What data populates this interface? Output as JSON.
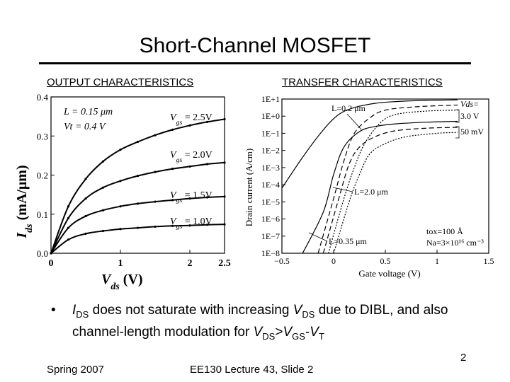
{
  "slide": {
    "title": "Short-Channel MOSFET",
    "left_subtitle": "OUTPUT CHARACTERISTICS",
    "right_subtitle": "TRANSFER CHARACTERISTICS",
    "footer_left": "Spring 2007",
    "footer_center": "EE130 Lecture 43, Slide 2",
    "page_number": "2"
  },
  "bullet": {
    "symbol": "•",
    "parts": [
      "I",
      "DS",
      " does not saturate with increasing ",
      "V",
      "DS",
      " due to DIBL, and also channel-length modulation for ",
      "V",
      "DS",
      ">",
      "V",
      "GS",
      "-",
      "V",
      "T"
    ]
  },
  "chart_data": [
    {
      "type": "line",
      "xlabel_main": "V",
      "xlabel_sub": "ds",
      "xlabel_unit": " (V)",
      "ylabel_main": "I",
      "ylabel_sub": "ds",
      "ylabel_unit": " (mA/μm)",
      "xlim": [
        0,
        2.5
      ],
      "ylim": [
        0,
        0.4
      ],
      "x_ticks": [
        "0",
        "1",
        "2",
        "2.5"
      ],
      "x_tick_values": [
        0,
        1,
        2,
        2.5
      ],
      "y_ticks": [
        "0.0",
        "0.1",
        "0.2",
        "0.3",
        "0.4"
      ],
      "y_tick_values": [
        0,
        0.1,
        0.2,
        0.3,
        0.4
      ],
      "annotations": [
        "L = 0.15 μm",
        "Vt = 0.4 V"
      ],
      "series": [
        {
          "name": "Vgs = 2.5V",
          "x": [
            0,
            0.25,
            0.5,
            0.75,
            1.0,
            1.25,
            1.5,
            1.75,
            2.0,
            2.25,
            2.5
          ],
          "y": [
            0,
            0.12,
            0.19,
            0.235,
            0.265,
            0.285,
            0.302,
            0.316,
            0.327,
            0.336,
            0.343
          ]
        },
        {
          "name": "Vgs = 2.0V",
          "x": [
            0,
            0.25,
            0.5,
            0.75,
            1.0,
            1.25,
            1.5,
            1.75,
            2.0,
            2.25,
            2.5
          ],
          "y": [
            0,
            0.09,
            0.14,
            0.168,
            0.185,
            0.198,
            0.208,
            0.216,
            0.222,
            0.228,
            0.232
          ]
        },
        {
          "name": "Vgs = 1.5V",
          "x": [
            0,
            0.25,
            0.5,
            0.75,
            1.0,
            1.25,
            1.5,
            1.75,
            2.0,
            2.25,
            2.5
          ],
          "y": [
            0,
            0.065,
            0.095,
            0.11,
            0.12,
            0.127,
            0.132,
            0.136,
            0.14,
            0.143,
            0.145
          ]
        },
        {
          "name": "Vgs = 1.0V",
          "x": [
            0,
            0.25,
            0.5,
            0.75,
            1.0,
            1.25,
            1.5,
            1.75,
            2.0,
            2.25,
            2.5
          ],
          "y": [
            0,
            0.035,
            0.05,
            0.057,
            0.062,
            0.065,
            0.068,
            0.07,
            0.071,
            0.073,
            0.074
          ]
        }
      ],
      "series_labels": [
        {
          "main": "V",
          "sub": "gs",
          "value": " = 2.5V"
        },
        {
          "main": "V",
          "sub": "gs",
          "value": " = 2.0V"
        },
        {
          "main": "V",
          "sub": "gs",
          "value": " = 1.5V"
        },
        {
          "main": "V",
          "sub": "gs",
          "value": " = 1.0V"
        }
      ]
    },
    {
      "type": "line",
      "xlabel": "Gate voltage (V)",
      "ylabel": "Drain current (A/cm)",
      "xlim": [
        -0.5,
        1.5
      ],
      "y_scale": "log",
      "ylim": [
        1e-08,
        10
      ],
      "x_ticks": [
        "−0.5",
        "0",
        "0.5",
        "1",
        "1.5"
      ],
      "x_tick_values": [
        -0.5,
        0,
        0.5,
        1,
        1.5
      ],
      "y_ticks": [
        "1E+1",
        "1E+0",
        "1E−1",
        "1E−2",
        "1E−3",
        "1E−4",
        "1E−5",
        "1E−6",
        "1E−7",
        "1E−8"
      ],
      "y_tick_values": [
        1,
        0,
        -1,
        -2,
        -3,
        -4,
        -5,
        -6,
        -7,
        -8
      ],
      "annotations": [
        "L=0.2 μm",
        "L=2.0 μm",
        "L=0.35 μm",
        "Vds=",
        "3.0 V",
        "50 mV",
        "tox=100 Å",
        "Na=3×10¹⁶ cm⁻³"
      ],
      "series": [
        {
          "name": "L=0.2 μm, Vds=3.0 V",
          "style": "solid",
          "x": [
            -0.5,
            -0.3,
            -0.1,
            0.05,
            0.2,
            0.4,
            0.6,
            0.9,
            1.2
          ],
          "log10_y": [
            -4.2,
            -2.4,
            -0.8,
            0.1,
            0.5,
            0.75,
            0.85,
            0.92,
            0.95
          ]
        },
        {
          "name": "L=0.2 μm, Vds=50 mV",
          "style": "solid",
          "x": [
            -0.3,
            -0.1,
            0.0,
            0.1,
            0.25,
            0.4,
            0.6,
            0.9,
            1.2
          ],
          "log10_y": [
            -8,
            -5.6,
            -3.4,
            -1.8,
            -0.9,
            -0.6,
            -0.45,
            -0.35,
            -0.3
          ]
        },
        {
          "name": "L=0.35 μm, Vds=3.0 V",
          "style": "dashed",
          "x": [
            -0.15,
            0.0,
            0.1,
            0.2,
            0.35,
            0.5,
            0.8,
            1.2
          ],
          "log10_y": [
            -8,
            -4.8,
            -2.6,
            -1.0,
            -0.1,
            0.35,
            0.55,
            0.65
          ]
        },
        {
          "name": "L=0.35 μm, Vds=50 mV",
          "style": "dashed",
          "x": [
            -0.1,
            0.05,
            0.15,
            0.25,
            0.4,
            0.6,
            0.9,
            1.2
          ],
          "log10_y": [
            -8,
            -4.8,
            -2.8,
            -1.8,
            -1.2,
            -0.85,
            -0.7,
            -0.65
          ]
        },
        {
          "name": "L=2.0 μm, Vds=3.0 V",
          "style": "dotted",
          "x": [
            -0.05,
            0.1,
            0.2,
            0.3,
            0.45,
            0.6,
            0.9,
            1.2
          ],
          "log10_y": [
            -8,
            -4.8,
            -3.0,
            -1.6,
            -0.4,
            0.1,
            0.3,
            0.35
          ]
        },
        {
          "name": "L=2.0 μm, Vds=50 mV",
          "style": "dotted",
          "x": [
            0.0,
            0.15,
            0.25,
            0.35,
            0.5,
            0.7,
            1.0,
            1.2
          ],
          "log10_y": [
            -8,
            -5.0,
            -3.4,
            -2.2,
            -1.6,
            -1.2,
            -1.0,
            -0.95
          ]
        }
      ]
    }
  ]
}
